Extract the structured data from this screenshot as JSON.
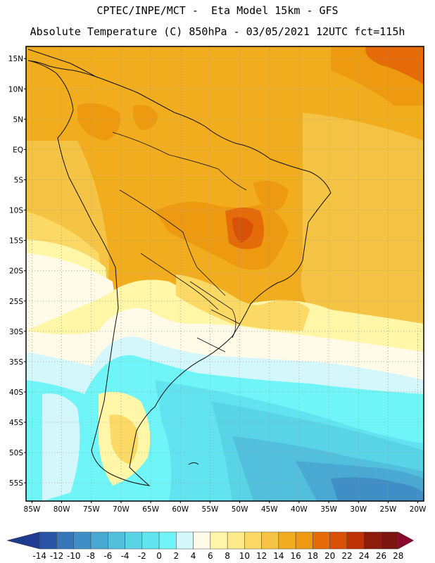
{
  "header": {
    "line1": "CPTEC/INPE/MCT -  Eta Model 15km - GFS",
    "line2": "Absolute Temperature (C) 850hPa - 03/05/2021 12UTC fct=115h"
  },
  "map": {
    "lon_range": [
      -86,
      -19
    ],
    "lat_range": [
      -58,
      17
    ],
    "lat_labels": [
      "15N",
      "10N",
      "5N",
      "EQ",
      "5S",
      "10S",
      "15S",
      "20S",
      "25S",
      "30S",
      "35S",
      "40S",
      "45S",
      "50S",
      "55S"
    ],
    "lat_values": [
      15,
      10,
      5,
      0,
      -5,
      -10,
      -15,
      -20,
      -25,
      -30,
      -35,
      -40,
      -45,
      -50,
      -55
    ],
    "lon_labels": [
      "85W",
      "80W",
      "75W",
      "70W",
      "65W",
      "60W",
      "55W",
      "50W",
      "45W",
      "40W",
      "35W",
      "30W",
      "25W",
      "20W"
    ],
    "lon_values": [
      -85,
      -80,
      -75,
      -70,
      -65,
      -60,
      -55,
      -50,
      -45,
      -40,
      -35,
      -30,
      -25,
      -20
    ]
  },
  "colorbar": {
    "labels": [
      "-14",
      "-12",
      "-10",
      "-8",
      "-6",
      "-4",
      "-2",
      "0",
      "2",
      "4",
      "6",
      "8",
      "10",
      "12",
      "14",
      "16",
      "18",
      "20",
      "22",
      "24",
      "26",
      "28"
    ],
    "colors": [
      "#1f3a8f",
      "#2a55a6",
      "#3575b8",
      "#3f8fc6",
      "#49a9d2",
      "#52c0dd",
      "#59d4e6",
      "#61e4ef",
      "#6ff5f8",
      "#d4f7fb",
      "#fffbe8",
      "#fff6a8",
      "#ffe98a",
      "#fcd965",
      "#f6c444",
      "#f1ad1e",
      "#ee9a10",
      "#e56a08",
      "#d85106",
      "#bf3207",
      "#8f1b0a",
      "#7a1510",
      "#8a0a2a"
    ]
  }
}
